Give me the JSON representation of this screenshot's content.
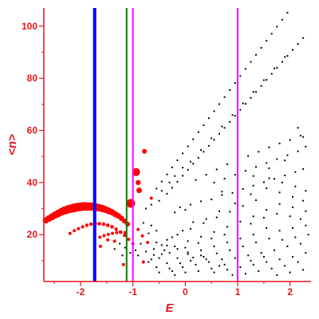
{
  "chart_data": {
    "type": "scatter",
    "xlabel": "E",
    "ylabel": "<n>",
    "xlim": [
      -2.7,
      2.4
    ],
    "ylim": [
      2,
      107
    ],
    "xticks": [
      -2,
      -1,
      0,
      1,
      2
    ],
    "yticks": [
      20,
      40,
      60,
      80,
      100
    ],
    "colors": {
      "axis": "#e8141b",
      "tick_label": "#e8141b",
      "black_points": "#000000",
      "red_points": "#ff0000",
      "blue_line": "#0000ff",
      "green_line": "#008000",
      "magenta_line": "#ff00ff"
    },
    "vertical_lines": [
      {
        "x": -1.73,
        "color": "#0000ff",
        "style": "thick"
      },
      {
        "x": -1.12,
        "color": "#008000",
        "style": "normal"
      },
      {
        "x": -1.0,
        "color": "#ff00ff",
        "style": "normal"
      },
      {
        "x": 1.0,
        "color": "#ff00ff",
        "style": "normal"
      }
    ],
    "red_points": [
      [
        -2.66,
        25.5,
        4.0
      ],
      [
        -2.6,
        26.2,
        4.2
      ],
      [
        -2.54,
        26.9,
        4.4
      ],
      [
        -2.48,
        27.6,
        4.6
      ],
      [
        -2.42,
        28.2,
        4.8
      ],
      [
        -2.36,
        28.8,
        5.0
      ],
      [
        -2.3,
        29.3,
        5.2
      ],
      [
        -2.24,
        29.7,
        5.3
      ],
      [
        -2.18,
        30.0,
        5.4
      ],
      [
        -2.12,
        30.3,
        5.5
      ],
      [
        -2.06,
        30.5,
        5.5
      ],
      [
        -2.0,
        30.7,
        5.5
      ],
      [
        -1.94,
        30.8,
        5.5
      ],
      [
        -1.88,
        30.8,
        5.4
      ],
      [
        -1.82,
        30.8,
        5.3
      ],
      [
        -1.76,
        30.7,
        5.2
      ],
      [
        -1.7,
        30.5,
        5.0
      ],
      [
        -1.64,
        30.3,
        4.8
      ],
      [
        -1.58,
        30.0,
        4.6
      ],
      [
        -1.52,
        29.6,
        4.4
      ],
      [
        -1.46,
        29.1,
        4.2
      ],
      [
        -1.4,
        28.6,
        4.0
      ],
      [
        -1.34,
        27.9,
        3.8
      ],
      [
        -1.28,
        27.2,
        3.6
      ],
      [
        -1.22,
        26.3,
        3.4
      ],
      [
        -1.16,
        25.2,
        3.2
      ],
      [
        -1.1,
        24.0,
        3.0
      ],
      [
        -1.04,
        32.0,
        5.5
      ],
      [
        -0.88,
        37.0,
        3.5
      ],
      [
        -0.94,
        44.0,
        5.0
      ],
      [
        -0.78,
        52.0,
        3.0
      ],
      [
        -0.65,
        34.0,
        2.0
      ],
      [
        -0.9,
        40.0,
        3.2
      ],
      [
        -2.2,
        20.5,
        2.0
      ],
      [
        -2.12,
        21.5,
        2.0
      ],
      [
        -2.04,
        22.3,
        2.1
      ],
      [
        -1.96,
        23.0,
        2.1
      ],
      [
        -1.88,
        23.6,
        2.2
      ],
      [
        -1.8,
        24.0,
        2.2
      ],
      [
        -1.72,
        24.2,
        2.3
      ],
      [
        -1.64,
        24.2,
        2.3
      ],
      [
        -1.56,
        24.0,
        2.3
      ],
      [
        -1.48,
        23.6,
        2.3
      ],
      [
        -1.4,
        23.0,
        2.3
      ],
      [
        -1.32,
        22.1,
        2.2
      ],
      [
        -1.24,
        21.0,
        2.2
      ],
      [
        -1.16,
        19.7,
        2.1
      ],
      [
        -1.08,
        18.2,
        2.0
      ],
      [
        -1.0,
        16.5,
        2.0
      ],
      [
        -1.63,
        19.0,
        2.0
      ],
      [
        -1.55,
        19.6,
        2.0
      ],
      [
        -1.47,
        20.1,
        2.0
      ],
      [
        -1.39,
        20.5,
        2.0
      ],
      [
        -1.31,
        20.8,
        2.0
      ],
      [
        -1.23,
        20.9,
        2.0
      ],
      [
        -1.15,
        20.8,
        2.0
      ],
      [
        -1.62,
        15.5,
        2.0
      ],
      [
        -1.18,
        8.5,
        2.0
      ],
      [
        -0.82,
        19.5,
        2.0
      ],
      [
        -0.72,
        17.0,
        2.0
      ],
      [
        -0.9,
        22.0,
        2.0
      ],
      [
        -0.8,
        9.5,
        2.0
      ],
      [
        -1.48,
        18.0,
        2.0
      ],
      [
        -1.35,
        17.5,
        2.0
      ]
    ],
    "black_points": [
      [
        -0.55,
        37.7
      ],
      [
        -0.45,
        40.4
      ],
      [
        -0.35,
        43.1
      ],
      [
        -0.25,
        45.8
      ],
      [
        -0.15,
        48.5
      ],
      [
        -0.05,
        51.2
      ],
      [
        0.05,
        53.9
      ],
      [
        0.15,
        56.6
      ],
      [
        0.25,
        59.3
      ],
      [
        0.35,
        62.0
      ],
      [
        0.45,
        64.7
      ],
      [
        0.55,
        67.4
      ],
      [
        0.65,
        70.1
      ],
      [
        0.75,
        72.8
      ],
      [
        0.85,
        75.5
      ],
      [
        0.95,
        78.2
      ],
      [
        1.05,
        80.9
      ],
      [
        1.15,
        83.6
      ],
      [
        1.25,
        86.3
      ],
      [
        1.35,
        89.0
      ],
      [
        1.45,
        91.7
      ],
      [
        1.55,
        94.4
      ],
      [
        1.65,
        97.1
      ],
      [
        1.75,
        99.8
      ],
      [
        1.85,
        102.5
      ],
      [
        1.95,
        105.2
      ],
      [
        2.05,
        107.9
      ],
      [
        -0.35,
        35.7
      ],
      [
        -0.25,
        38.0
      ],
      [
        -0.15,
        40.3
      ],
      [
        -0.05,
        42.6
      ],
      [
        0.05,
        44.9
      ],
      [
        0.15,
        47.2
      ],
      [
        0.25,
        49.5
      ],
      [
        0.35,
        51.8
      ],
      [
        0.45,
        54.1
      ],
      [
        0.55,
        56.4
      ],
      [
        0.65,
        58.7
      ],
      [
        0.75,
        61.0
      ],
      [
        0.85,
        63.3
      ],
      [
        0.95,
        65.6
      ],
      [
        1.05,
        67.9
      ],
      [
        1.15,
        70.2
      ],
      [
        1.25,
        72.5
      ],
      [
        1.35,
        74.8
      ],
      [
        1.45,
        77.1
      ],
      [
        1.55,
        79.4
      ],
      [
        1.65,
        81.7
      ],
      [
        1.75,
        84.0
      ],
      [
        1.85,
        86.3
      ],
      [
        1.95,
        88.6
      ],
      [
        2.05,
        90.9
      ],
      [
        2.15,
        93.2
      ],
      [
        2.25,
        95.5
      ],
      [
        -0.45,
        36.8
      ],
      [
        -0.3,
        40.0
      ],
      [
        -0.2,
        42.5
      ],
      [
        -0.05,
        45.7
      ],
      [
        0.1,
        48.0
      ],
      [
        0.3,
        52.5
      ],
      [
        0.5,
        57.0
      ],
      [
        0.7,
        61.5
      ],
      [
        0.9,
        65.9
      ],
      [
        1.1,
        70.4
      ],
      [
        1.3,
        74.8
      ],
      [
        1.5,
        79.3
      ],
      [
        1.7,
        83.8
      ],
      [
        1.9,
        88.2
      ],
      [
        -0.1,
        30.5
      ],
      [
        0.1,
        31.5
      ],
      [
        0.3,
        32.8
      ],
      [
        0.5,
        33.5
      ],
      [
        0.7,
        35.2
      ],
      [
        0.9,
        36.0
      ],
      [
        1.1,
        37.5
      ],
      [
        1.3,
        38.8
      ],
      [
        1.5,
        40.1
      ],
      [
        1.7,
        41.4
      ],
      [
        1.9,
        42.7
      ],
      [
        2.1,
        44.0
      ],
      [
        2.25,
        45.2
      ],
      [
        -0.5,
        33.0
      ],
      [
        -0.65,
        31.5
      ],
      [
        -0.75,
        30.0
      ],
      [
        -0.2,
        28.5
      ],
      [
        0.0,
        29.5
      ],
      [
        0.2,
        41.0
      ],
      [
        0.4,
        43.0
      ],
      [
        0.6,
        45.0
      ],
      [
        0.8,
        47.0
      ],
      [
        1.0,
        48.8
      ],
      [
        1.2,
        50.2
      ],
      [
        1.4,
        51.8
      ],
      [
        1.6,
        53.5
      ],
      [
        1.8,
        55.0
      ],
      [
        2.0,
        56.3
      ],
      [
        2.2,
        58.0
      ],
      [
        0.55,
        40.0
      ],
      [
        0.75,
        41.5
      ],
      [
        0.95,
        43.0
      ],
      [
        1.15,
        44.5
      ],
      [
        1.35,
        46.0
      ],
      [
        1.55,
        47.5
      ],
      [
        1.75,
        49.0
      ],
      [
        1.95,
        50.5
      ],
      [
        2.15,
        52.0
      ],
      [
        2.3,
        53.8
      ],
      [
        2.15,
        61.0
      ],
      [
        2.25,
        57.5
      ],
      [
        1.9,
        48.5
      ],
      [
        1.6,
        45.5
      ],
      [
        1.3,
        42.5
      ],
      [
        1.0,
        39.5
      ],
      [
        0.7,
        36.5
      ],
      [
        2.3,
        36.8
      ],
      [
        2.1,
        38.5
      ],
      [
        1.85,
        40.0
      ],
      [
        1.6,
        41.6
      ],
      [
        1.35,
        33.2
      ],
      [
        1.1,
        31.0
      ],
      [
        0.85,
        28.8
      ],
      [
        0.6,
        26.6
      ],
      [
        0.35,
        24.4
      ],
      [
        0.1,
        22.2
      ],
      [
        -0.15,
        20.0
      ],
      [
        -0.35,
        18.0
      ],
      [
        2.25,
        33.0
      ],
      [
        2.05,
        34.5
      ],
      [
        1.8,
        36.2
      ],
      [
        1.55,
        37.8
      ],
      [
        1.25,
        35.5
      ],
      [
        0.95,
        32.0
      ],
      [
        0.65,
        29.0
      ],
      [
        0.4,
        26.0
      ],
      [
        0.15,
        24.8
      ],
      [
        -0.05,
        21.5
      ],
      [
        -0.25,
        19.0
      ],
      [
        -0.45,
        16.0
      ],
      [
        2.3,
        29.0
      ],
      [
        2.05,
        30.5
      ],
      [
        1.8,
        31.8
      ],
      [
        1.55,
        29.5
      ],
      [
        1.3,
        27.0
      ],
      [
        1.05,
        25.0
      ],
      [
        0.8,
        23.0
      ],
      [
        0.55,
        21.0
      ],
      [
        0.3,
        19.2
      ],
      [
        0.05,
        17.5
      ],
      [
        -0.2,
        15.5
      ],
      [
        -0.4,
        14.0
      ],
      [
        -0.6,
        12.2
      ],
      [
        2.2,
        26.0
      ],
      [
        2.0,
        27.0
      ],
      [
        1.75,
        28.0
      ],
      [
        1.5,
        26.5
      ],
      [
        1.25,
        24.2
      ],
      [
        1.0,
        22.0
      ],
      [
        0.75,
        20.0
      ],
      [
        0.5,
        18.5
      ],
      [
        0.25,
        16.8
      ],
      [
        0.0,
        15.0
      ],
      [
        -0.3,
        13.0
      ],
      [
        -0.5,
        11.0
      ],
      [
        -0.7,
        9.5
      ],
      [
        2.3,
        23.5
      ],
      [
        2.05,
        22.5
      ],
      [
        1.8,
        21.5
      ],
      [
        1.55,
        22.5
      ],
      [
        1.3,
        20.0
      ],
      [
        1.05,
        18.5
      ],
      [
        0.8,
        17.0
      ],
      [
        0.55,
        15.5
      ],
      [
        0.3,
        14.0
      ],
      [
        0.05,
        12.5
      ],
      [
        -0.15,
        11.0
      ],
      [
        -0.35,
        9.0
      ],
      [
        -0.55,
        7.5
      ],
      [
        2.35,
        20.0
      ],
      [
        2.1,
        19.0
      ],
      [
        1.85,
        18.0
      ],
      [
        1.6,
        18.5
      ],
      [
        1.35,
        17.0
      ],
      [
        1.1,
        15.5
      ],
      [
        0.85,
        14.0
      ],
      [
        0.6,
        12.8
      ],
      [
        0.35,
        11.5
      ],
      [
        0.1,
        10.0
      ],
      [
        -0.1,
        9.0
      ],
      [
        -0.3,
        7.0
      ],
      [
        -0.5,
        5.5
      ],
      [
        2.2,
        16.5
      ],
      [
        1.95,
        15.5
      ],
      [
        1.7,
        14.0
      ],
      [
        1.45,
        13.0
      ],
      [
        1.2,
        12.0
      ],
      [
        0.95,
        11.0
      ],
      [
        0.7,
        10.5
      ],
      [
        0.45,
        9.5
      ],
      [
        0.2,
        8.5
      ],
      [
        -0.05,
        7.5
      ],
      [
        -0.25,
        6.0
      ],
      [
        -0.6,
        14.5
      ],
      [
        2.3,
        13.0
      ],
      [
        2.05,
        11.5
      ],
      [
        1.8,
        10.5
      ],
      [
        1.55,
        9.5
      ],
      [
        1.3,
        8.5
      ],
      [
        1.05,
        7.5
      ],
      [
        0.8,
        6.5
      ],
      [
        0.55,
        5.5
      ],
      [
        0.3,
        12.0
      ],
      [
        0.05,
        13.2
      ],
      [
        -0.15,
        14.5
      ],
      [
        -0.35,
        15.8
      ],
      [
        -0.55,
        17.0
      ],
      [
        2.15,
        9.5
      ],
      [
        1.9,
        8.0
      ],
      [
        1.65,
        7.0
      ],
      [
        1.4,
        6.0
      ],
      [
        1.15,
        5.0
      ],
      [
        0.9,
        4.5
      ],
      [
        0.65,
        8.0
      ],
      [
        0.4,
        10.5
      ],
      [
        0.15,
        11.2
      ],
      [
        -0.45,
        12.5
      ],
      [
        -0.65,
        10.5
      ],
      [
        -0.75,
        13.5
      ],
      [
        2.25,
        6.5
      ],
      [
        2.0,
        5.5
      ],
      [
        1.75,
        4.5
      ],
      [
        1.5,
        11.5
      ],
      [
        1.25,
        10.0
      ],
      [
        1.0,
        9.0
      ],
      [
        0.75,
        8.5
      ],
      [
        0.5,
        7.0
      ],
      [
        0.25,
        6.0
      ],
      [
        0.0,
        5.5
      ],
      [
        -0.2,
        4.5
      ],
      [
        -0.9,
        12.0
      ],
      [
        -0.85,
        16.5
      ],
      [
        -0.95,
        14.0
      ],
      [
        -1.05,
        13.0
      ],
      [
        -1.15,
        15.0
      ],
      [
        -1.25,
        16.5
      ],
      [
        -1.35,
        14.5
      ],
      [
        -1.2,
        12.0
      ],
      [
        -0.7,
        20.5
      ],
      [
        -0.55,
        21.5
      ],
      [
        -0.65,
        23.5
      ],
      [
        -0.8,
        24.5
      ]
    ]
  }
}
